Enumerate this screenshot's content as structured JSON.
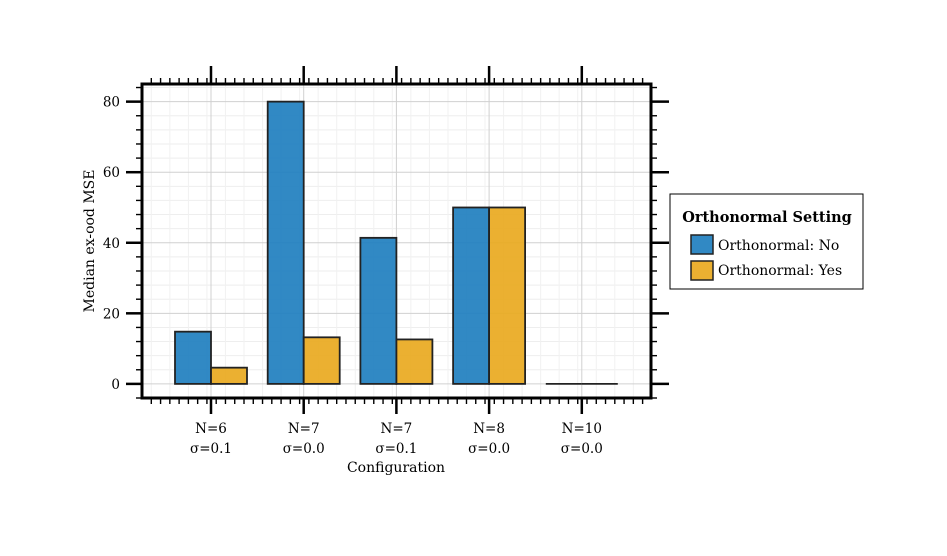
{
  "chart_data": {
    "type": "bar",
    "title": "",
    "xlabel": "Configuration",
    "ylabel": "Median ex-ood MSE",
    "categories": [
      {
        "line1": "N=6",
        "line2": "σ=0.1"
      },
      {
        "line1": "N=7",
        "line2": "σ=0.0"
      },
      {
        "line1": "N=7",
        "line2": "σ=0.1"
      },
      {
        "line1": "N=8",
        "line2": "σ=0.0"
      },
      {
        "line1": "N=10",
        "line2": "σ=0.0"
      }
    ],
    "series": [
      {
        "name": "Orthonormal: No",
        "color": "#1f7fbf",
        "values": [
          14.8,
          80.0,
          41.4,
          50.0,
          0.0
        ]
      },
      {
        "name": "Orthonormal: Yes",
        "color": "#e9a91f",
        "values": [
          4.6,
          13.2,
          12.6,
          50.0,
          0.0
        ]
      }
    ],
    "ylim": [
      -4,
      85
    ],
    "yticks": [
      0,
      20,
      40,
      60,
      80
    ],
    "grid": true,
    "legend": {
      "title": "Orthonormal Setting",
      "placement": "outside-right"
    }
  }
}
